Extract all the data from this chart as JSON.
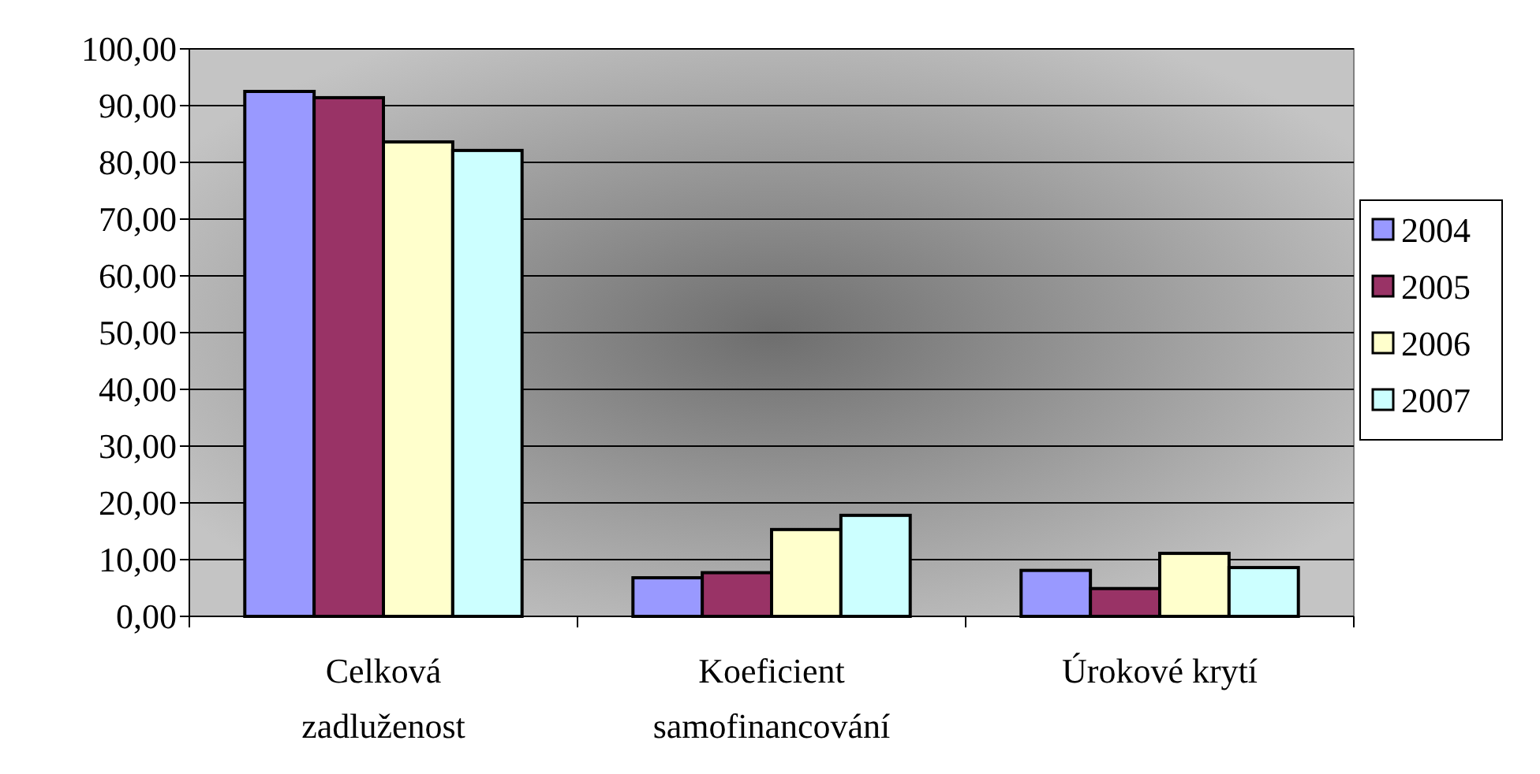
{
  "chart_data": {
    "type": "bar",
    "categories": [
      "Celková zadluženost",
      "Koeficient samofinancování",
      "Úrokové krytí"
    ],
    "series": [
      {
        "name": "2004",
        "color": "#9999ff",
        "values": [
          92.5,
          6.8,
          8.1
        ]
      },
      {
        "name": "2005",
        "color": "#993366",
        "values": [
          91.4,
          7.7,
          4.9
        ]
      },
      {
        "name": "2006",
        "color": "#ffffcc",
        "values": [
          83.6,
          15.3,
          11.1
        ]
      },
      {
        "name": "2007",
        "color": "#ccffff",
        "values": [
          82.1,
          17.8,
          8.6
        ]
      }
    ],
    "ylim": [
      0,
      100
    ],
    "yticks": [
      {
        "value": 0,
        "label": "0,00"
      },
      {
        "value": 10,
        "label": "10,00"
      },
      {
        "value": 20,
        "label": "20,00"
      },
      {
        "value": 30,
        "label": "30,00"
      },
      {
        "value": 40,
        "label": "40,00"
      },
      {
        "value": 50,
        "label": "50,00"
      },
      {
        "value": 60,
        "label": "60,00"
      },
      {
        "value": 70,
        "label": "70,00"
      },
      {
        "value": 80,
        "label": "80,00"
      },
      {
        "value": 90,
        "label": "90,00"
      },
      {
        "value": 100,
        "label": "100,00"
      }
    ],
    "grid": "y",
    "legend": "right"
  }
}
